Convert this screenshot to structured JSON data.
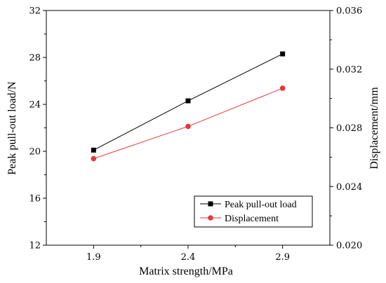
{
  "chart_data": {
    "type": "line",
    "xlabel": "Matrix strength/MPa",
    "ylabel_left": "Peak pull-out load/N",
    "ylabel_right": "Displacement/mm",
    "x": [
      1.9,
      2.4,
      2.9
    ],
    "x_ticks": [
      "1.9",
      "2.4",
      "2.9"
    ],
    "xlim": [
      1.65,
      3.15
    ],
    "ylim_left": [
      12,
      32
    ],
    "ylim_right": [
      0.02,
      0.036
    ],
    "y_ticks_left": [
      "12",
      "16",
      "20",
      "24",
      "28",
      "32"
    ],
    "y_ticks_right": [
      "0.020",
      "0.024",
      "0.028",
      "0.032",
      "0.036"
    ],
    "legend_position": "bottom-right",
    "series": [
      {
        "name": "Peak pull-out load",
        "axis": "left",
        "marker": "square",
        "color": "#000000",
        "values": [
          20.1,
          24.3,
          28.3
        ]
      },
      {
        "name": "Displacement",
        "axis": "right",
        "marker": "circle",
        "color": "#e8363b",
        "values": [
          0.0259,
          0.0281,
          0.0307
        ]
      }
    ]
  }
}
